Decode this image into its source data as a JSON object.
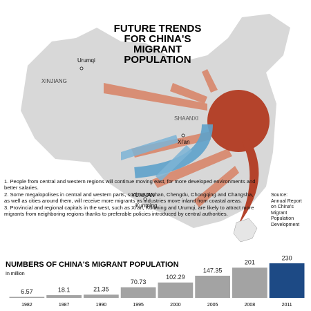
{
  "title_lines": [
    "FUTURE TRENDS",
    "FOR CHINA'S",
    "MIGRANT",
    "POPULATION"
  ],
  "map_labels": [
    "Urumqi",
    "XINJIANG",
    "SHAANXI",
    "Xi'an",
    "YUNNAN",
    "Kunming"
  ],
  "notes": [
    "1. People from central and western regions will continue moving east, for more developed environments and better salaries.",
    "2. Some megalopolises in central and western parts, such as Wuhan, Chengdu, Chongqing and Changsha, as well as cities around them, will receive more migrants as industries move inland from coastal areas.",
    "3. Provincial and regional capitals in the west, such as Xi'an, Kunming and Urumqi, are likely to attract more migrants from neighboring regions thanks to preferable policies introduced by central authorities."
  ],
  "source": [
    "Source:",
    "Annual Report",
    "on China's",
    "Migrant",
    "Population",
    "Development"
  ],
  "chart_data": {
    "type": "bar",
    "title": "NUMBERS OF CHINA'S MIGRANT POPULATION",
    "subtitle": "In million",
    "categories": [
      "1982",
      "1987",
      "1990",
      "1995",
      "2000",
      "2005",
      "2008",
      "2011"
    ],
    "values": [
      6.57,
      18.1,
      21.35,
      70.73,
      102.29,
      147.35,
      201,
      230
    ],
    "colors": [
      "#a3a3a3",
      "#a3a3a3",
      "#a3a3a3",
      "#a3a3a3",
      "#a3a3a3",
      "#a3a3a3",
      "#a3a3a3",
      "#1d4a85"
    ]
  }
}
